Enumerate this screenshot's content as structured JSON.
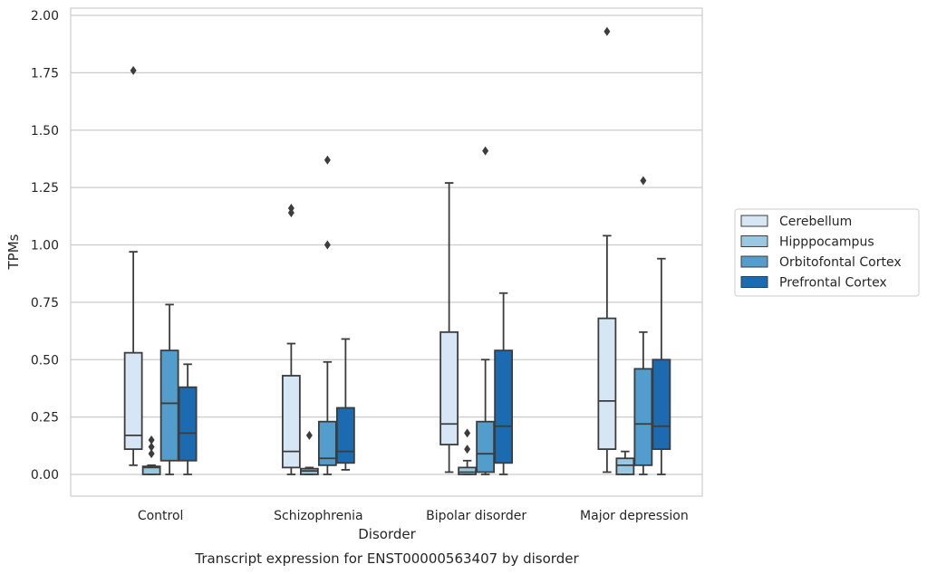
{
  "chart_data": {
    "type": "boxplot",
    "title": "",
    "caption": "Transcript expression for ENST00000563407 by disorder",
    "xlabel": "Disorder",
    "ylabel": "TPMs",
    "ylim": [
      -0.09,
      2.03
    ],
    "yticks": [
      "0.00",
      "0.25",
      "0.50",
      "0.75",
      "1.00",
      "1.25",
      "1.50",
      "1.75",
      "2.00"
    ],
    "categories": [
      "Control",
      "Schizophrenia",
      "Bipolar disorder",
      "Major depression"
    ],
    "grid": true,
    "legend_position": "right",
    "series": [
      {
        "name": "Cerebellum",
        "color": "#d6e6f4",
        "boxes": [
          {
            "whislo": 0.04,
            "q1": 0.11,
            "med": 0.17,
            "q3": 0.53,
            "whishi": 0.97,
            "fliers": [
              1.76
            ]
          },
          {
            "whislo": 0.0,
            "q1": 0.03,
            "med": 0.1,
            "q3": 0.43,
            "whishi": 0.57,
            "fliers": [
              1.14,
              1.16
            ]
          },
          {
            "whislo": 0.01,
            "q1": 0.13,
            "med": 0.22,
            "q3": 0.62,
            "whishi": 1.27,
            "fliers": []
          },
          {
            "whislo": 0.01,
            "q1": 0.11,
            "med": 0.32,
            "q3": 0.68,
            "whishi": 1.04,
            "fliers": [
              1.93
            ]
          }
        ]
      },
      {
        "name": "Hipppocampus",
        "color": "#9ac8e0",
        "boxes": [
          {
            "whislo": 0.0,
            "q1": 0.0,
            "med": 0.03,
            "q3": 0.035,
            "whishi": 0.04,
            "fliers": [
              0.09,
              0.12,
              0.15
            ]
          },
          {
            "whislo": 0.0,
            "q1": 0.0,
            "med": 0.015,
            "q3": 0.025,
            "whishi": 0.03,
            "fliers": [
              0.17
            ]
          },
          {
            "whislo": 0.0,
            "q1": 0.0,
            "med": 0.01,
            "q3": 0.03,
            "whishi": 0.06,
            "fliers": [
              0.11,
              0.18
            ]
          },
          {
            "whislo": 0.0,
            "q1": 0.0,
            "med": 0.04,
            "q3": 0.07,
            "whishi": 0.1,
            "fliers": []
          }
        ]
      },
      {
        "name": "Orbitofontal Cortex",
        "color": "#529dcc",
        "boxes": [
          {
            "whislo": 0.0,
            "q1": 0.06,
            "med": 0.31,
            "q3": 0.54,
            "whishi": 0.74,
            "fliers": []
          },
          {
            "whislo": 0.0,
            "q1": 0.04,
            "med": 0.07,
            "q3": 0.23,
            "whishi": 0.49,
            "fliers": [
              1.0,
              1.37
            ]
          },
          {
            "whislo": 0.0,
            "q1": 0.01,
            "med": 0.09,
            "q3": 0.23,
            "whishi": 0.5,
            "fliers": [
              1.41
            ]
          },
          {
            "whislo": 0.0,
            "q1": 0.04,
            "med": 0.22,
            "q3": 0.46,
            "whishi": 0.62,
            "fliers": [
              1.28
            ]
          }
        ]
      },
      {
        "name": "Prefrontal Cortex",
        "color": "#1c6aaf",
        "boxes": [
          {
            "whislo": 0.0,
            "q1": 0.06,
            "med": 0.18,
            "q3": 0.38,
            "whishi": 0.48,
            "fliers": []
          },
          {
            "whislo": 0.02,
            "q1": 0.05,
            "med": 0.1,
            "q3": 0.29,
            "whishi": 0.59,
            "fliers": []
          },
          {
            "whislo": 0.0,
            "q1": 0.05,
            "med": 0.21,
            "q3": 0.54,
            "whishi": 0.79,
            "fliers": []
          },
          {
            "whislo": 0.0,
            "q1": 0.11,
            "med": 0.21,
            "q3": 0.5,
            "whishi": 0.94,
            "fliers": []
          }
        ]
      }
    ]
  }
}
